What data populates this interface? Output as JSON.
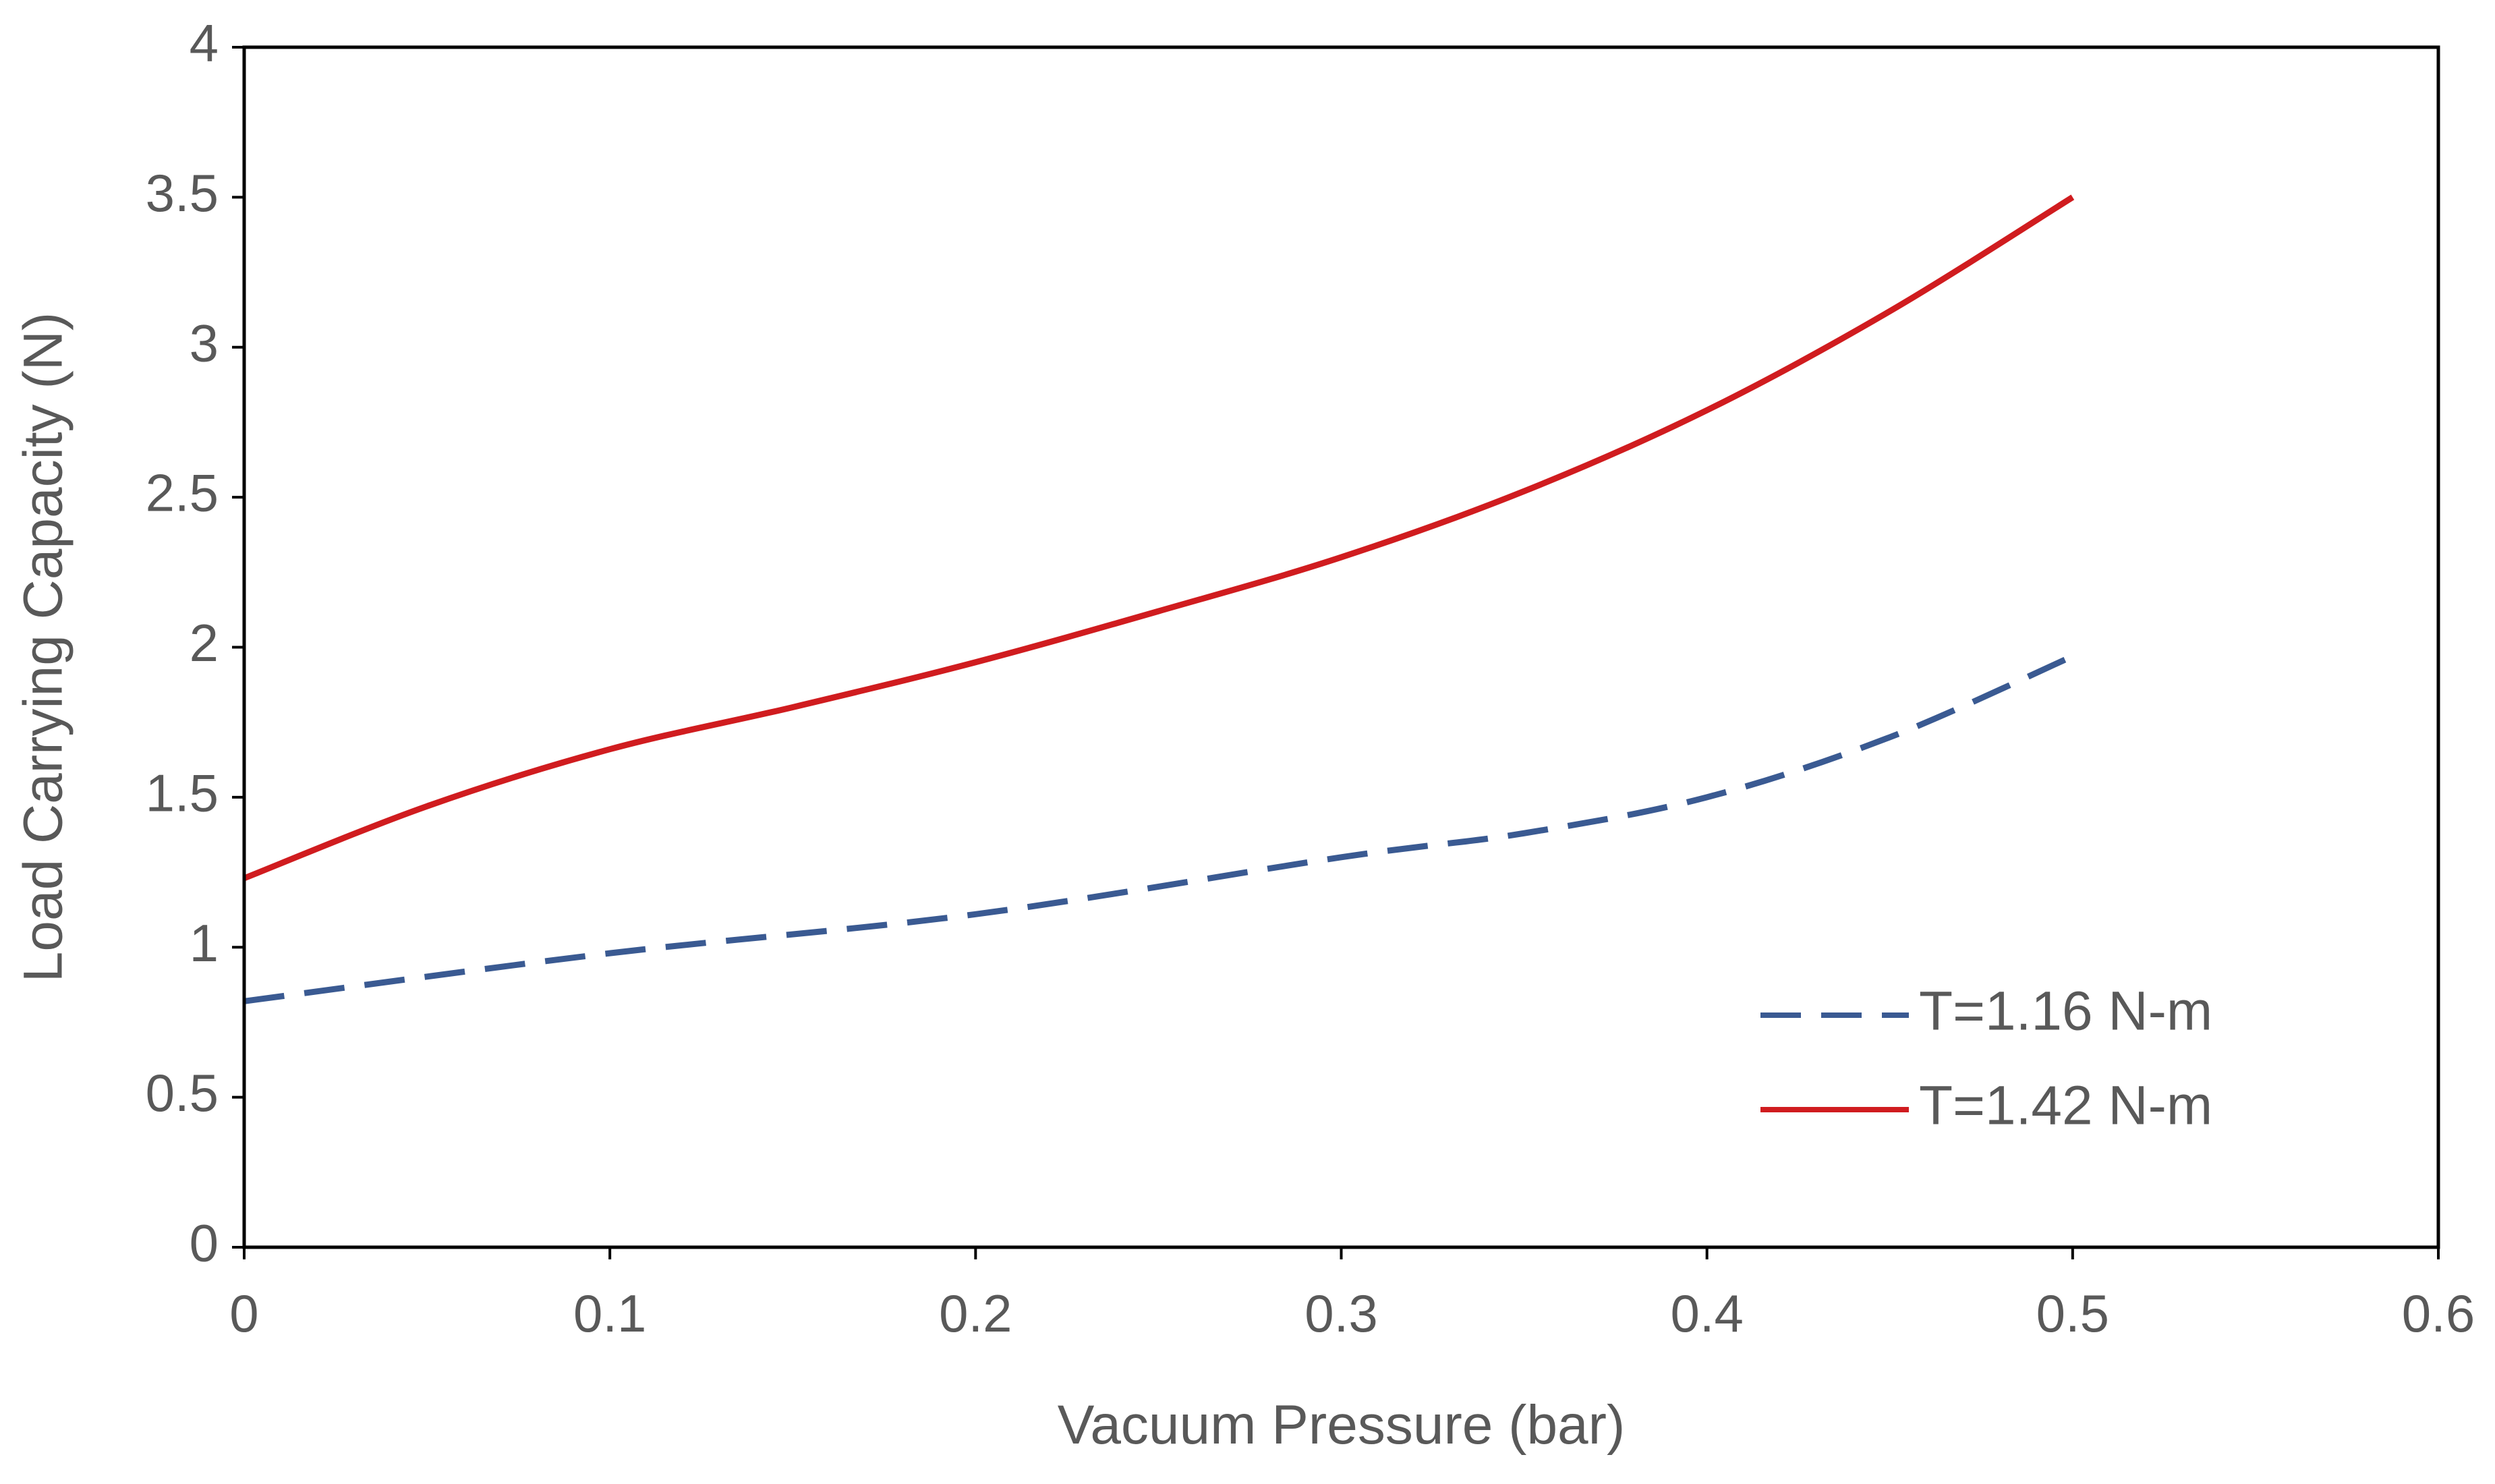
{
  "chart_data": {
    "type": "line",
    "title": "",
    "xlabel": "Vacuum Pressure (bar)",
    "ylabel": "Load Carrying Capacity (N)",
    "xlim": [
      0,
      0.6
    ],
    "ylim": [
      0,
      4
    ],
    "x_ticks": [
      "0",
      "0.1",
      "0.2",
      "0.3",
      "0.4",
      "0.5",
      "0.6"
    ],
    "y_ticks": [
      "0",
      "0.5",
      "1",
      "1.5",
      "2",
      "2.5",
      "3",
      "3.5",
      "4"
    ],
    "grid": false,
    "legend_position": "bottom-right",
    "series": [
      {
        "name": "T=1.16 N-m",
        "style": "dashed",
        "color": "#3a5a92",
        "x": [
          0,
          0.1,
          0.2,
          0.3,
          0.35,
          0.4,
          0.45,
          0.5
        ],
        "y": [
          0.82,
          0.98,
          1.11,
          1.3,
          1.38,
          1.5,
          1.7,
          1.97
        ]
      },
      {
        "name": "T=1.42 N-m",
        "style": "solid",
        "color": "#d01c1f",
        "x": [
          0,
          0.05,
          0.1,
          0.15,
          0.2,
          0.25,
          0.3,
          0.35,
          0.4,
          0.45,
          0.5
        ],
        "y": [
          1.23,
          1.47,
          1.66,
          1.8,
          1.95,
          2.12,
          2.3,
          2.52,
          2.79,
          3.12,
          3.5
        ]
      }
    ]
  }
}
